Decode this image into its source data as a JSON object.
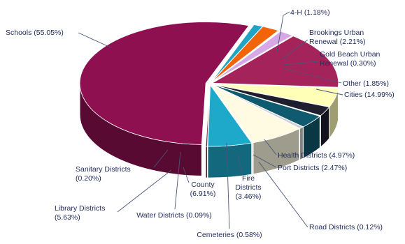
{
  "chart_data": {
    "type": "pie",
    "style": "3d-exploded",
    "legend": "none",
    "labels_as_printed": [
      [
        "Schools (55.05%)"
      ],
      [
        "4-H (1.18%)"
      ],
      [
        "Brookings Urban",
        "Renewal (2.21%)"
      ],
      [
        "Gold Beach Urban",
        "Renewal (0.30%)"
      ],
      [
        "Other (1.85%)"
      ],
      [
        "Cities (14.99%)"
      ],
      [
        "Health Districts (4.97%)"
      ],
      [
        "Port Districts (2.47%)"
      ],
      [
        "Road Districts (0.12%)"
      ],
      [
        "Fire",
        "Districts",
        "(3.46%)"
      ],
      [
        "Cemeteries (0.58%)"
      ],
      [
        "County",
        "(6.91%)"
      ],
      [
        "Water Districts (0.09%)"
      ],
      [
        "Library Districts",
        "(5.63%)"
      ],
      [
        "Sanitary Districts",
        "(0.20%)"
      ]
    ],
    "slices": [
      {
        "label": "4-H",
        "value": 1.18,
        "color": "#21a3c4"
      },
      {
        "label": "Brookings Urban Renewal",
        "value": 2.21,
        "color": "#f2640a"
      },
      {
        "label": "Gold Beach Urban Renewal",
        "value": 0.3,
        "color": "#ffffff"
      },
      {
        "label": "Other",
        "value": 1.85,
        "color": "#d7a8e6"
      },
      {
        "label": "Cities",
        "value": 14.99,
        "color": "#a3235a"
      },
      {
        "label": "Health Districts",
        "value": 4.97,
        "color": "#ffffb8"
      },
      {
        "label": "Port Districts",
        "value": 2.47,
        "color": "#1e1e2e"
      },
      {
        "label": "Road Districts",
        "value": 0.12,
        "color": "#c86878"
      },
      {
        "label": "Fire Districts",
        "value": 3.46,
        "color": "#0f5a6e"
      },
      {
        "label": "Cemeteries",
        "value": 0.58,
        "color": "#d2d2d2"
      },
      {
        "label": "County",
        "value": 6.91,
        "color": "#fffbe2"
      },
      {
        "label": "Water Districts",
        "value": 0.09,
        "color": "#6b1a2e"
      },
      {
        "label": "Library Districts",
        "value": 5.63,
        "color": "#1ea8c9"
      },
      {
        "label": "Sanitary Districts",
        "value": 0.2,
        "color": "#7a1f3e"
      },
      {
        "label": "Schools",
        "value": 55.05,
        "color": "#8e1050"
      }
    ]
  }
}
